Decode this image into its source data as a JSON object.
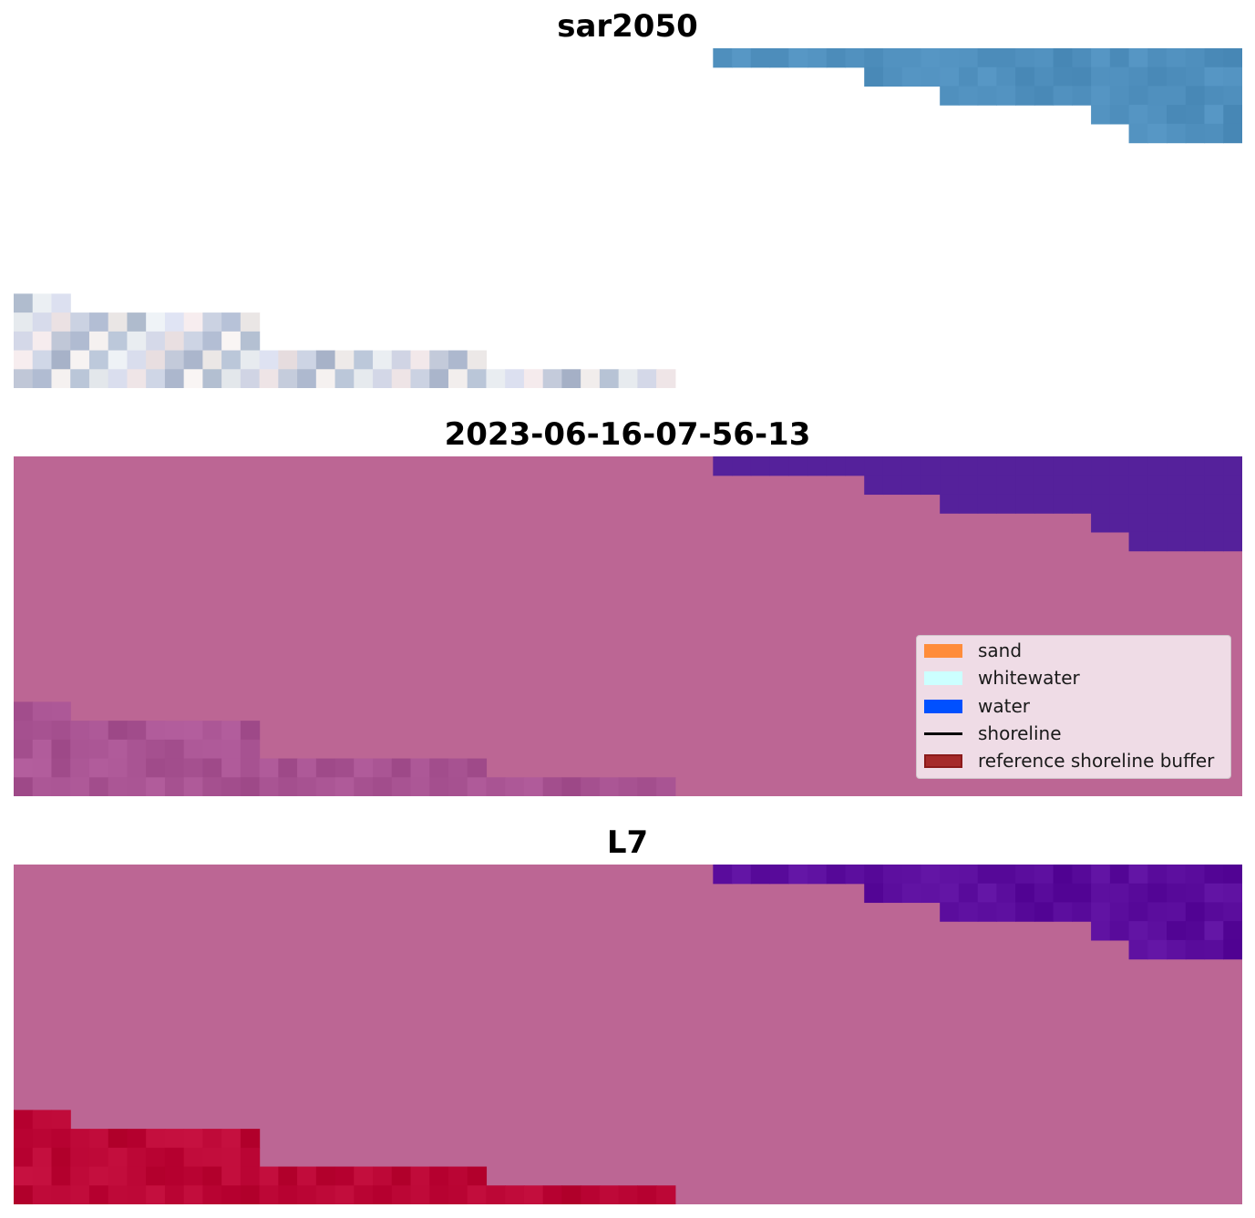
{
  "panels": [
    {
      "title": "sar2050"
    },
    {
      "title": "2023-06-16-07-56-13"
    },
    {
      "title": "L7"
    }
  ],
  "legend": {
    "items": [
      {
        "label": "sand",
        "color": "#ff8c3a",
        "kind": "patch"
      },
      {
        "label": "whitewater",
        "color": "#ccffff",
        "kind": "patch"
      },
      {
        "label": "water",
        "color": "#0050ff",
        "kind": "patch"
      },
      {
        "label": "shoreline",
        "color": "#000000",
        "kind": "line"
      },
      {
        "label": "reference shoreline buffer",
        "color": "#a52a2a",
        "kind": "patch-edge",
        "edge": "#8b1a1a"
      }
    ]
  },
  "colors": {
    "background_buffer": "#bc6694",
    "water_class": "#55219b",
    "water_rgb": "#4f8fbd",
    "land_image": "#c3cde0",
    "shoreline_buffer_land": "#bb0635"
  }
}
